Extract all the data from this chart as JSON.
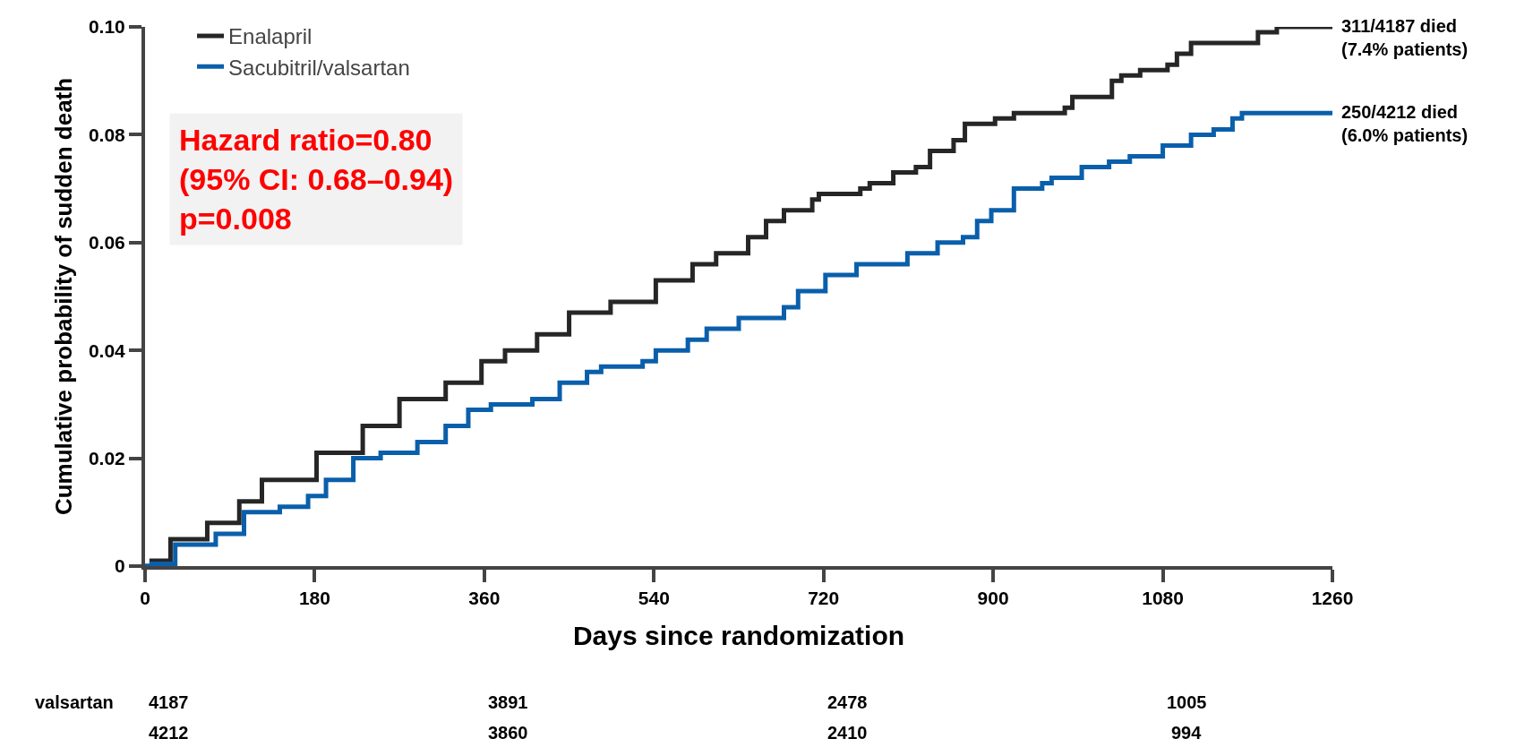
{
  "chart_data": {
    "type": "step",
    "xlabel": "Days since randomization",
    "ylabel": "Cumulative probability of sudden death",
    "xlim": [
      0,
      1260
    ],
    "xticks": [
      0,
      180,
      360,
      540,
      720,
      900,
      1080,
      1260
    ],
    "ylim": [
      0,
      0.1
    ],
    "yticks": [
      0,
      0.02,
      0.04,
      0.06,
      0.08,
      {
        "value": 0.1,
        "label": "0.10"
      }
    ],
    "grid": false,
    "legend": "top left",
    "marker": "none",
    "line_style": "solid",
    "series": [
      {
        "name": "Enalapril",
        "color": "#262626",
        "x": [
          0,
          7,
          27,
          66,
          100,
          124,
          182,
          231,
          270,
          319,
          357,
          382,
          416,
          450,
          494,
          542,
          581,
          606,
          640,
          659,
          678,
          708,
          715,
          759,
          769,
          794,
          818,
          833,
          858,
          870,
          902,
          922,
          976,
          984,
          1011,
          1026,
          1036,
          1056,
          1085,
          1095,
          1110,
          1181,
          1201,
          1260
        ],
        "values": [
          0,
          0.001,
          0.005,
          0.008,
          0.012,
          0.016,
          0.021,
          0.026,
          0.031,
          0.034,
          0.038,
          0.04,
          0.043,
          0.047,
          0.049,
          0.053,
          0.056,
          0.058,
          0.061,
          0.064,
          0.066,
          0.068,
          0.069,
          0.07,
          0.071,
          0.073,
          0.074,
          0.077,
          0.079,
          0.082,
          0.083,
          0.084,
          0.085,
          0.087,
          0.087,
          0.09,
          0.091,
          0.092,
          0.093,
          0.095,
          0.097,
          0.099,
          0.1,
          0.1
        ]
      },
      {
        "name": "Sacubitril/valsartan",
        "color": "#0a5fab",
        "x": [
          0,
          7,
          32,
          75,
          105,
          143,
          173,
          192,
          221,
          250,
          289,
          319,
          343,
          367,
          411,
          440,
          469,
          484,
          528,
          542,
          576,
          596,
          630,
          678,
          693,
          722,
          755,
          809,
          841,
          868,
          883,
          898,
          922,
          952,
          962,
          994,
          1023,
          1045,
          1080,
          1110,
          1134,
          1154,
          1164,
          1260
        ],
        "values": [
          0,
          0.0004,
          0.004,
          0.006,
          0.01,
          0.011,
          0.013,
          0.016,
          0.02,
          0.021,
          0.023,
          0.026,
          0.029,
          0.03,
          0.031,
          0.034,
          0.036,
          0.037,
          0.038,
          0.04,
          0.042,
          0.044,
          0.046,
          0.048,
          0.051,
          0.054,
          0.056,
          0.058,
          0.06,
          0.061,
          0.064,
          0.066,
          0.07,
          0.071,
          0.072,
          0.074,
          0.075,
          0.076,
          0.078,
          0.08,
          0.081,
          0.083,
          0.084,
          0.084
        ]
      }
    ],
    "annotations": [
      "Hazard ratio=0.80\n(95% CI: 0.68–0.94)\np=0.008",
      "311/4187 died\n(7.4% patients)",
      "250/4212 died\n(6.0% patients)",
      "valsartan\t4187\t3891\t2478\t1005",
      "\t4212\t3860\t2410\t994"
    ]
  }
}
